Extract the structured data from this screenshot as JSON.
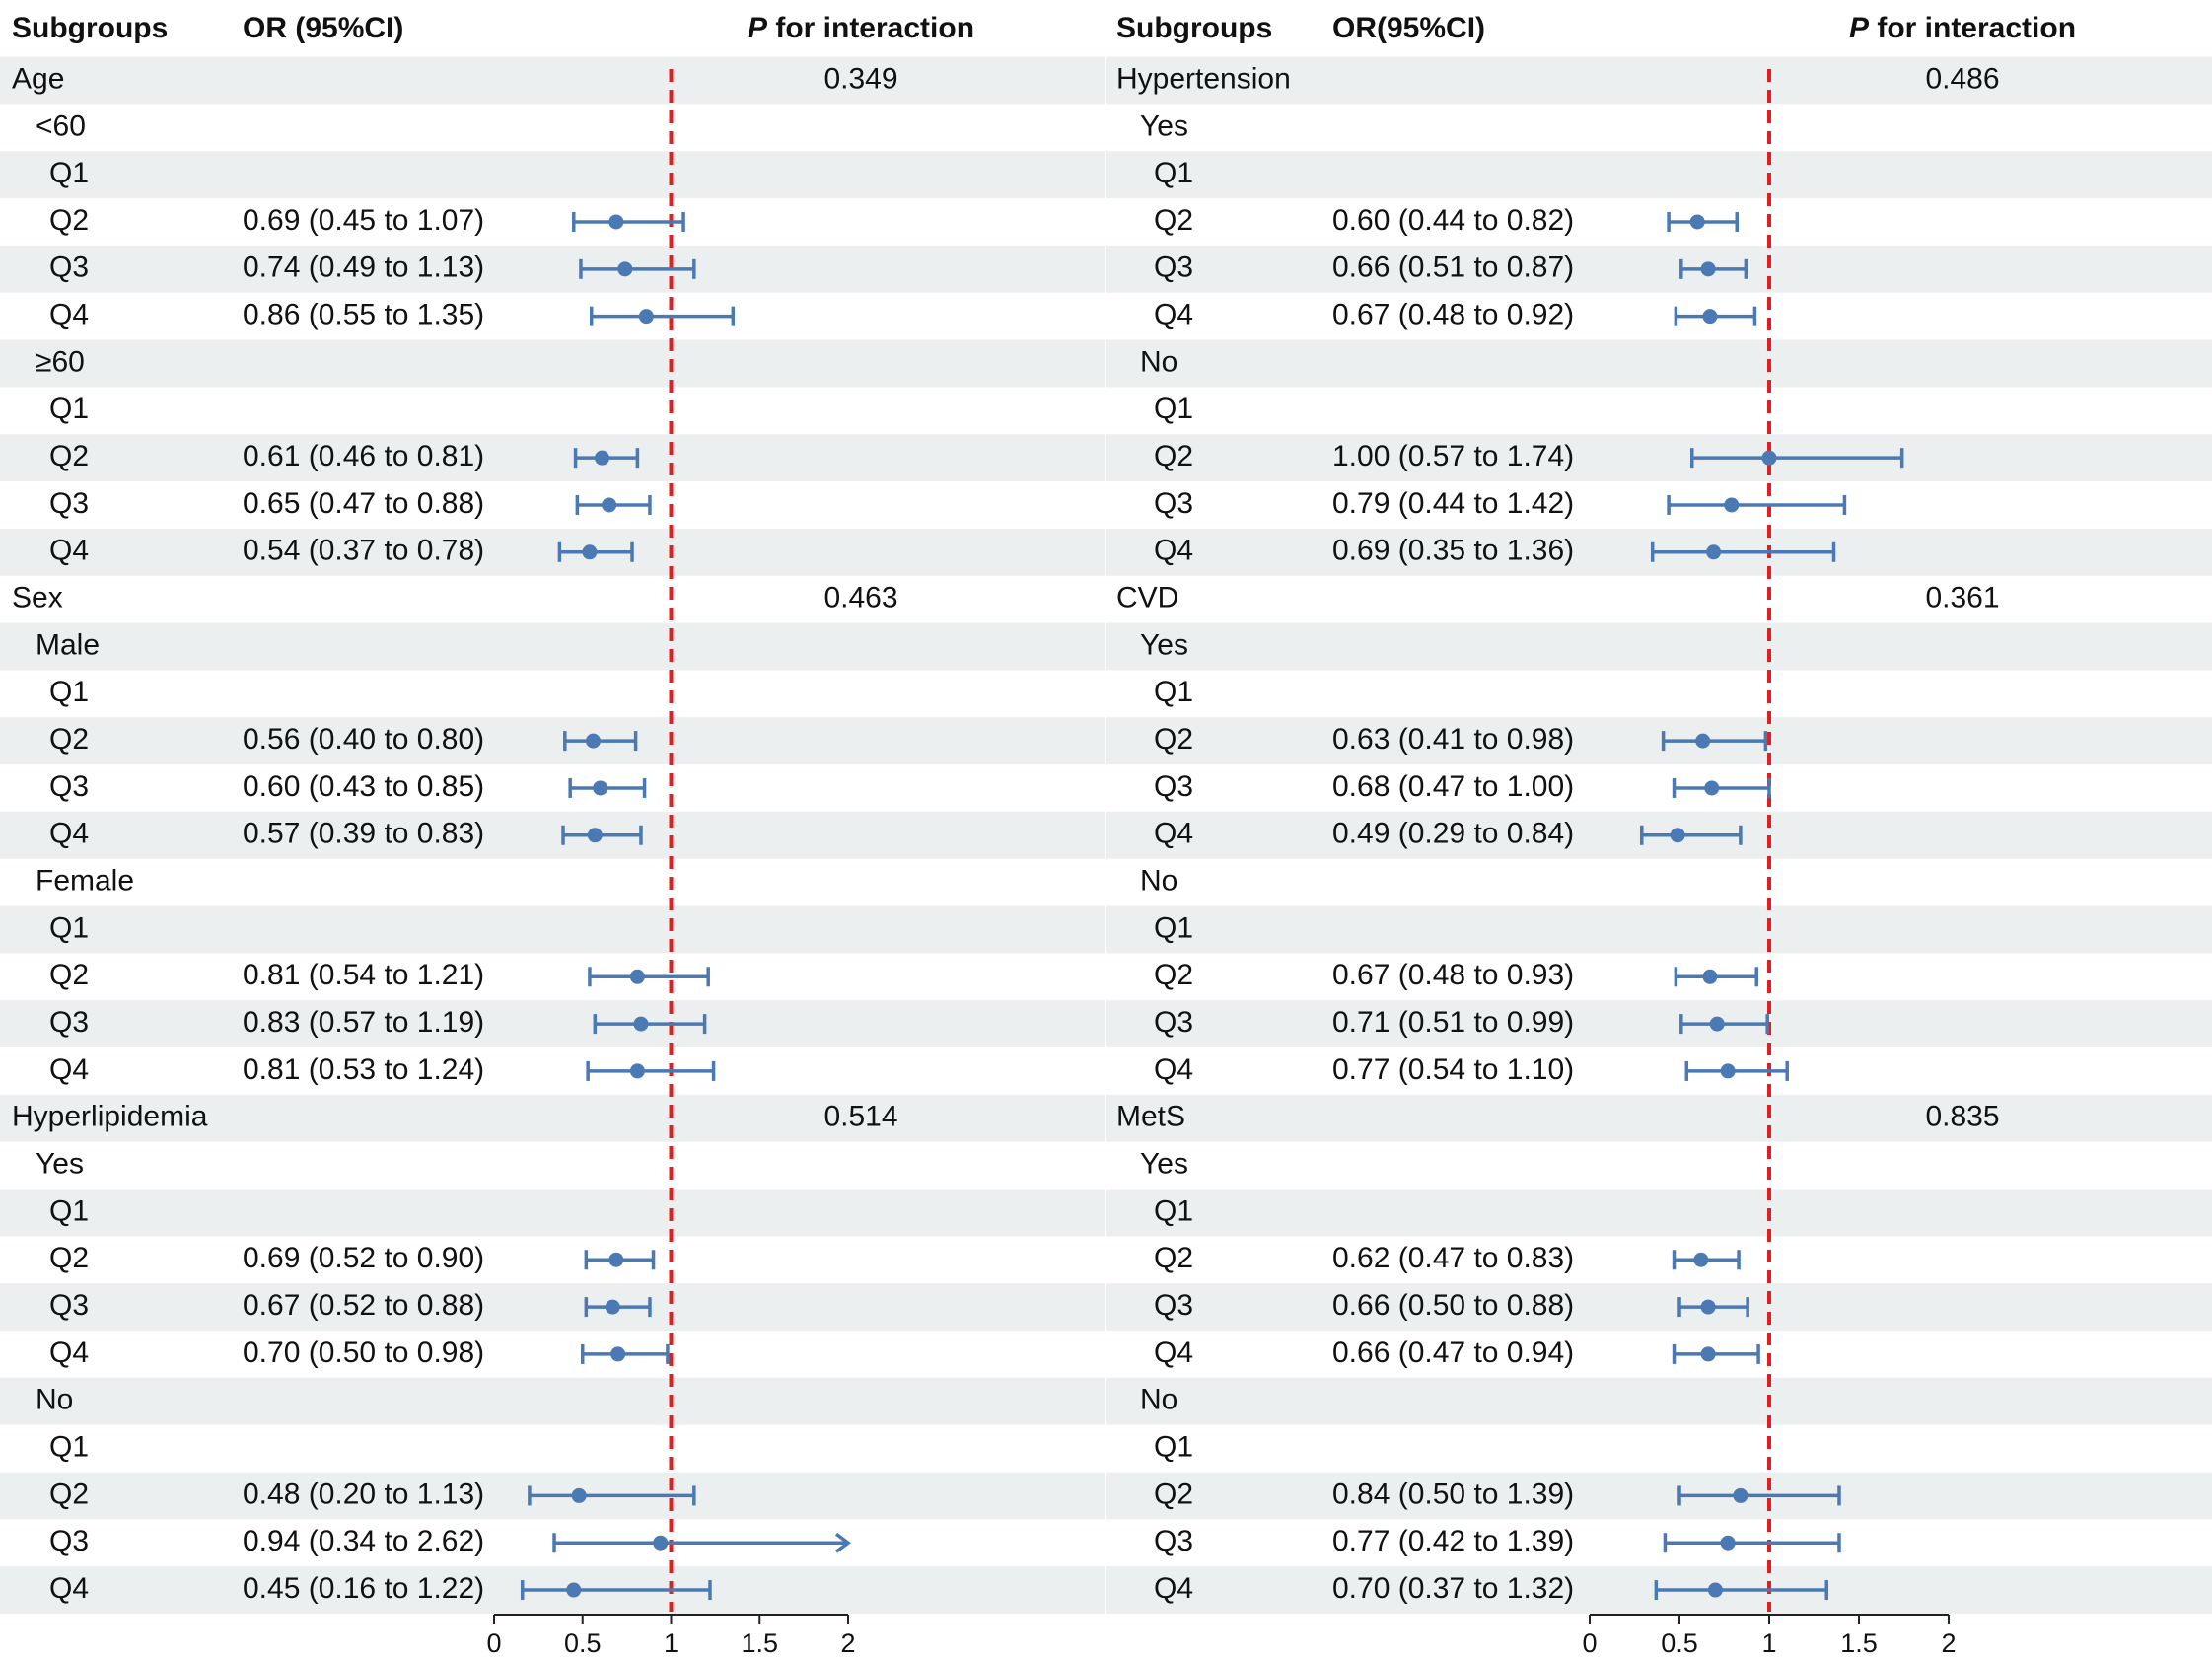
{
  "chart_data": {
    "type": "forest",
    "reference_line": 1,
    "xlim": [
      0,
      2
    ],
    "xticks": [
      "0",
      "0.5",
      "1",
      "1.5",
      "2"
    ],
    "panels": [
      {
        "headers": {
          "subgroups": "Subgroups",
          "or": "OR (95%CI)",
          "p_italic": "P",
          "p_rest": "for interaction"
        },
        "rows": [
          {
            "label": "Age",
            "p": "0.349",
            "level": 0
          },
          {
            "label": "<60",
            "level": 1
          },
          {
            "label": "Q1",
            "level": 2
          },
          {
            "label": "Q2",
            "level": 2,
            "or": 0.69,
            "lo": 0.45,
            "hi": 1.07,
            "text": "0.69 (0.45 to 1.07)"
          },
          {
            "label": "Q3",
            "level": 2,
            "or": 0.74,
            "lo": 0.49,
            "hi": 1.13,
            "text": "0.74 (0.49 to 1.13)"
          },
          {
            "label": "Q4",
            "level": 2,
            "or": 0.86,
            "lo": 0.55,
            "hi": 1.35,
            "text": "0.86 (0.55 to 1.35)"
          },
          {
            "label": "≥60",
            "level": 1
          },
          {
            "label": "Q1",
            "level": 2
          },
          {
            "label": "Q2",
            "level": 2,
            "or": 0.61,
            "lo": 0.46,
            "hi": 0.81,
            "text": "0.61 (0.46 to 0.81)"
          },
          {
            "label": "Q3",
            "level": 2,
            "or": 0.65,
            "lo": 0.47,
            "hi": 0.88,
            "text": "0.65 (0.47 to 0.88)"
          },
          {
            "label": "Q4",
            "level": 2,
            "or": 0.54,
            "lo": 0.37,
            "hi": 0.78,
            "text": "0.54 (0.37 to 0.78)"
          },
          {
            "label": "Sex",
            "p": "0.463",
            "level": 0
          },
          {
            "label": "Male",
            "level": 1
          },
          {
            "label": "Q1",
            "level": 2
          },
          {
            "label": "Q2",
            "level": 2,
            "or": 0.56,
            "lo": 0.4,
            "hi": 0.8,
            "text": "0.56 (0.40 to 0.80)"
          },
          {
            "label": "Q3",
            "level": 2,
            "or": 0.6,
            "lo": 0.43,
            "hi": 0.85,
            "text": "0.60 (0.43 to 0.85)"
          },
          {
            "label": "Q4",
            "level": 2,
            "or": 0.57,
            "lo": 0.39,
            "hi": 0.83,
            "text": "0.57 (0.39 to 0.83)"
          },
          {
            "label": "Female",
            "level": 1
          },
          {
            "label": "Q1",
            "level": 2
          },
          {
            "label": "Q2",
            "level": 2,
            "or": 0.81,
            "lo": 0.54,
            "hi": 1.21,
            "text": "0.81 (0.54 to 1.21)"
          },
          {
            "label": "Q3",
            "level": 2,
            "or": 0.83,
            "lo": 0.57,
            "hi": 1.19,
            "text": "0.83 (0.57 to 1.19)"
          },
          {
            "label": "Q4",
            "level": 2,
            "or": 0.81,
            "lo": 0.53,
            "hi": 1.24,
            "text": "0.81 (0.53 to 1.24)"
          },
          {
            "label": "Hyperlipidemia",
            "p": "0.514",
            "level": 0
          },
          {
            "label": "Yes",
            "level": 1
          },
          {
            "label": "Q1",
            "level": 2
          },
          {
            "label": "Q2",
            "level": 2,
            "or": 0.69,
            "lo": 0.52,
            "hi": 0.9,
            "text": "0.69 (0.52 to 0.90)"
          },
          {
            "label": "Q3",
            "level": 2,
            "or": 0.67,
            "lo": 0.52,
            "hi": 0.88,
            "text": "0.67 (0.52 to 0.88)"
          },
          {
            "label": "Q4",
            "level": 2,
            "or": 0.7,
            "lo": 0.5,
            "hi": 0.98,
            "text": "0.70 (0.50 to 0.98)"
          },
          {
            "label": "No",
            "level": 1
          },
          {
            "label": "Q1",
            "level": 2
          },
          {
            "label": "Q2",
            "level": 2,
            "or": 0.48,
            "lo": 0.2,
            "hi": 1.13,
            "text": "0.48 (0.20 to 1.13)"
          },
          {
            "label": "Q3",
            "level": 2,
            "or": 0.94,
            "lo": 0.34,
            "hi": 2.62,
            "text": "0.94 (0.34 to 2.62)",
            "arrow": true
          },
          {
            "label": "Q4",
            "level": 2,
            "or": 0.45,
            "lo": 0.16,
            "hi": 1.22,
            "text": "0.45 (0.16 to 1.22)"
          }
        ]
      },
      {
        "headers": {
          "subgroups": "Subgroups",
          "or": "OR(95%CI)",
          "p_italic": "P",
          "p_rest": "for interaction"
        },
        "rows": [
          {
            "label": "Hypertension",
            "p": "0.486",
            "level": 0
          },
          {
            "label": "Yes",
            "level": 1
          },
          {
            "label": "Q1",
            "level": 2
          },
          {
            "label": "Q2",
            "level": 2,
            "or": 0.6,
            "lo": 0.44,
            "hi": 0.82,
            "text": "0.60 (0.44 to 0.82)"
          },
          {
            "label": "Q3",
            "level": 2,
            "or": 0.66,
            "lo": 0.51,
            "hi": 0.87,
            "text": "0.66 (0.51 to 0.87)"
          },
          {
            "label": "Q4",
            "level": 2,
            "or": 0.67,
            "lo": 0.48,
            "hi": 0.92,
            "text": "0.67 (0.48 to 0.92)"
          },
          {
            "label": "No",
            "level": 1
          },
          {
            "label": "Q1",
            "level": 2
          },
          {
            "label": "Q2",
            "level": 2,
            "or": 1.0,
            "lo": 0.57,
            "hi": 1.74,
            "text": "1.00 (0.57 to 1.74)"
          },
          {
            "label": "Q3",
            "level": 2,
            "or": 0.79,
            "lo": 0.44,
            "hi": 1.42,
            "text": "0.79 (0.44 to 1.42)"
          },
          {
            "label": "Q4",
            "level": 2,
            "or": 0.69,
            "lo": 0.35,
            "hi": 1.36,
            "text": "0.69 (0.35 to 1.36)"
          },
          {
            "label": "CVD",
            "p": "0.361",
            "level": 0
          },
          {
            "label": "Yes",
            "level": 1
          },
          {
            "label": "Q1",
            "level": 2
          },
          {
            "label": "Q2",
            "level": 2,
            "or": 0.63,
            "lo": 0.41,
            "hi": 0.98,
            "text": "0.63 (0.41 to 0.98)"
          },
          {
            "label": "Q3",
            "level": 2,
            "or": 0.68,
            "lo": 0.47,
            "hi": 1.0,
            "text": "0.68 (0.47 to 1.00)"
          },
          {
            "label": "Q4",
            "level": 2,
            "or": 0.49,
            "lo": 0.29,
            "hi": 0.84,
            "text": "0.49 (0.29 to 0.84)"
          },
          {
            "label": "No",
            "level": 1
          },
          {
            "label": "Q1",
            "level": 2
          },
          {
            "label": "Q2",
            "level": 2,
            "or": 0.67,
            "lo": 0.48,
            "hi": 0.93,
            "text": "0.67 (0.48 to 0.93)"
          },
          {
            "label": "Q3",
            "level": 2,
            "or": 0.71,
            "lo": 0.51,
            "hi": 0.99,
            "text": "0.71 (0.51 to 0.99)"
          },
          {
            "label": "Q4",
            "level": 2,
            "or": 0.77,
            "lo": 0.54,
            "hi": 1.1,
            "text": "0.77 (0.54 to 1.10)"
          },
          {
            "label": "MetS",
            "p": "0.835",
            "level": 0
          },
          {
            "label": "Yes",
            "level": 1
          },
          {
            "label": "Q1",
            "level": 2
          },
          {
            "label": "Q2",
            "level": 2,
            "or": 0.62,
            "lo": 0.47,
            "hi": 0.83,
            "text": "0.62 (0.47 to 0.83)"
          },
          {
            "label": "Q3",
            "level": 2,
            "or": 0.66,
            "lo": 0.5,
            "hi": 0.88,
            "text": "0.66 (0.50 to 0.88)"
          },
          {
            "label": "Q4",
            "level": 2,
            "or": 0.66,
            "lo": 0.47,
            "hi": 0.94,
            "text": "0.66 (0.47 to 0.94)"
          },
          {
            "label": "No",
            "level": 1
          },
          {
            "label": "Q1",
            "level": 2
          },
          {
            "label": "Q2",
            "level": 2,
            "or": 0.84,
            "lo": 0.5,
            "hi": 1.39,
            "text": "0.84 (0.50 to 1.39)"
          },
          {
            "label": "Q3",
            "level": 2,
            "or": 0.77,
            "lo": 0.42,
            "hi": 1.39,
            "text": "0.77 (0.42 to 1.39)"
          },
          {
            "label": "Q4",
            "level": 2,
            "or": 0.7,
            "lo": 0.37,
            "hi": 1.32,
            "text": "0.70 (0.37 to 1.32)"
          }
        ]
      }
    ]
  },
  "colors": {
    "band": "#eceff0",
    "ci": "#4a79b4",
    "point": "#4a79b4",
    "reference": "#e02020",
    "axis": "#222222",
    "text": "#111111"
  }
}
